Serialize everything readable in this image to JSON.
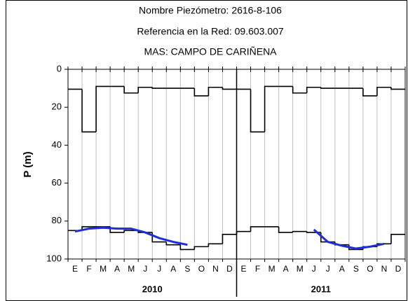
{
  "chart_data": {
    "type": "line",
    "title_lines": [
      "Nombre Piezómetro: 2616-8-106",
      "Referencia en la Red: 09.603.007",
      "MAS: CAMPO DE CARIÑENA"
    ],
    "y_label": "P (m)",
    "categories": [
      "E",
      "F",
      "M",
      "A",
      "M",
      "J",
      "J",
      "A",
      "S",
      "O",
      "N",
      "D",
      "E",
      "F",
      "M",
      "A",
      "M",
      "J",
      "J",
      "A",
      "S",
      "O",
      "N",
      "D"
    ],
    "years": [
      "2010",
      "2011"
    ],
    "ylim": [
      0,
      100
    ],
    "yticks": [
      0,
      20,
      40,
      60,
      80,
      100
    ],
    "y_inverted": true,
    "grid": true,
    "series": [
      {
        "color": "#000000",
        "step": true,
        "values": [
          10.5,
          33,
          9,
          9,
          12.5,
          9.5,
          10,
          10,
          10,
          14,
          9.5,
          10.5,
          10.5,
          33,
          9,
          9,
          12.5,
          9.5,
          10,
          10,
          10,
          14,
          9.5,
          10.5
        ]
      },
      {
        "color": "#000000",
        "step": true,
        "values": [
          85,
          83,
          83,
          86,
          85,
          86,
          91,
          92.5,
          95,
          93.5,
          92,
          87,
          85.5,
          83,
          83,
          86,
          85.5,
          86,
          91,
          92.5,
          95,
          93.5,
          92,
          87
        ]
      },
      {
        "color": "#1f2fd8",
        "step": false,
        "values": [
          85.5,
          84,
          83.5,
          84,
          84,
          86,
          89,
          91,
          92.5,
          null,
          null,
          null,
          null,
          null,
          null,
          null,
          null,
          84.5,
          91,
          93,
          94.5,
          93.5,
          92,
          null
        ]
      }
    ]
  }
}
